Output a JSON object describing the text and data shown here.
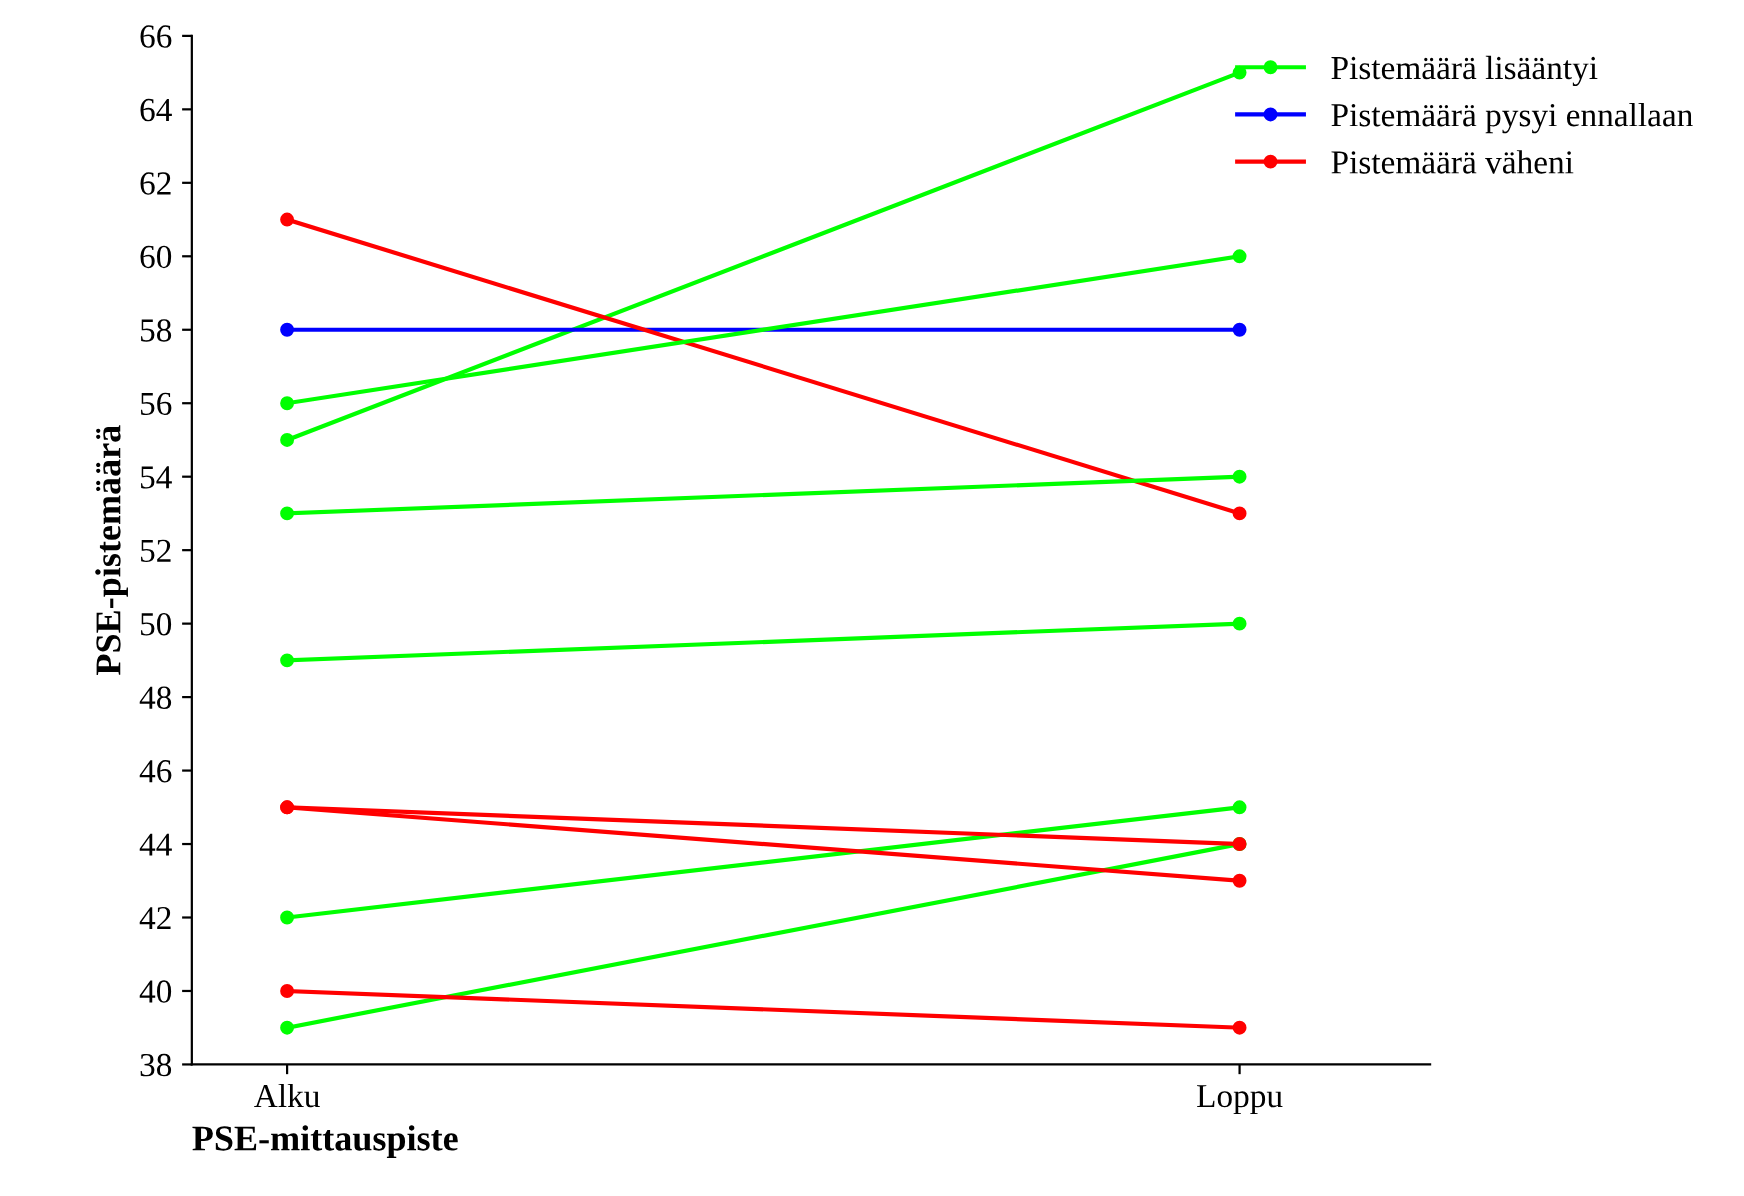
{
  "chart_data": {
    "type": "line",
    "xlabel": "PSE-mittauspiste",
    "ylabel": "PSE-pistemäärä",
    "categories": [
      "Alku",
      "Loppu"
    ],
    "series": [
      {
        "name": "Pistemäärä lisääntyi",
        "color": "#00ff00",
        "values": [
          55,
          65
        ]
      },
      {
        "name": "Pistemäärä pysyi ennallaan",
        "color": "#0000ff",
        "values": [
          58,
          58
        ]
      },
      {
        "name": "Pistemäärä väheni",
        "color": "#ff0000",
        "values": [
          61,
          53
        ]
      },
      {
        "color": "#00ff00",
        "values": [
          56,
          60
        ]
      },
      {
        "color": "#00ff00",
        "values": [
          53,
          54
        ]
      },
      {
        "color": "#00ff00",
        "values": [
          49,
          50
        ]
      },
      {
        "color": "#00ff00",
        "values": [
          42,
          45
        ]
      },
      {
        "color": "#00ff00",
        "values": [
          39,
          44
        ]
      },
      {
        "color": "#ff0000",
        "values": [
          45,
          44
        ]
      },
      {
        "color": "#ff0000",
        "values": [
          45,
          43
        ]
      },
      {
        "color": "#ff0000",
        "values": [
          40,
          39
        ]
      }
    ],
    "ylim": [
      38,
      66
    ],
    "yticks": [
      38,
      40,
      42,
      44,
      46,
      48,
      50,
      52,
      54,
      56,
      58,
      60,
      62,
      64,
      66
    ],
    "marker": "circle",
    "line_style": "solid",
    "grid": false,
    "legend": "top right"
  }
}
